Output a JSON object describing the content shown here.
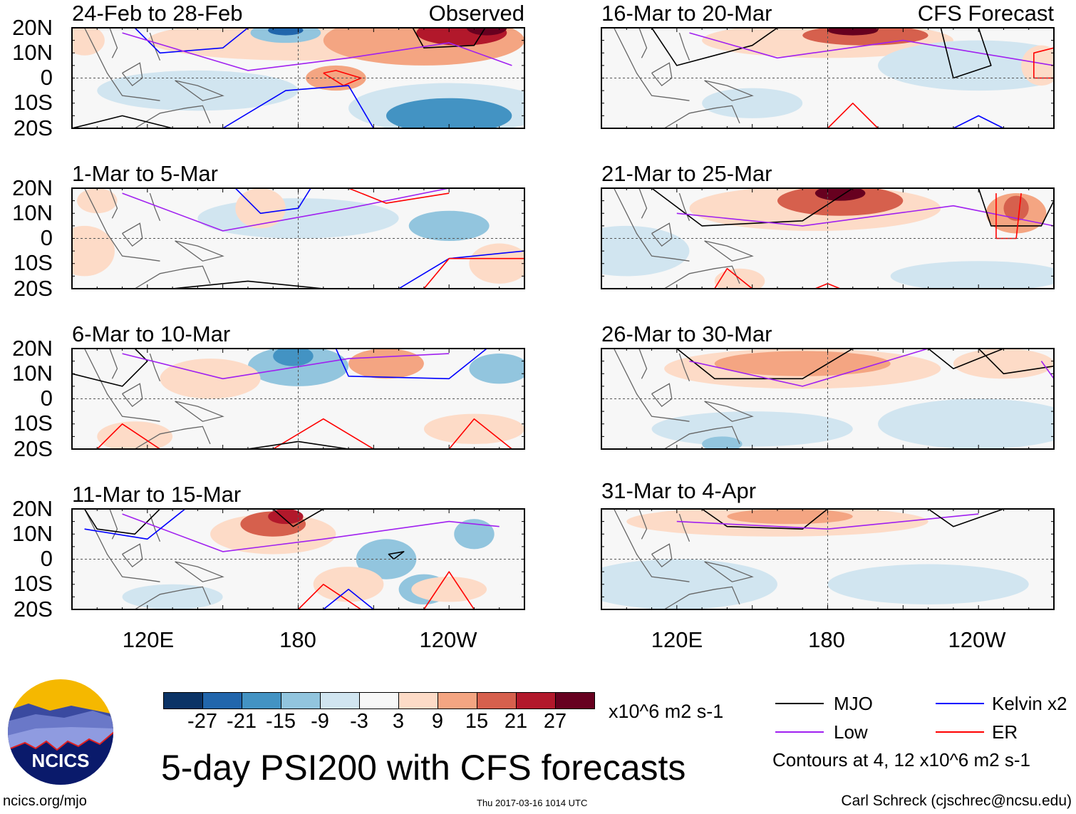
{
  "panels": {
    "left": [
      {
        "title": "24-Feb to 28-Feb",
        "tag": "Observed"
      },
      {
        "title": "1-Mar to 5-Mar"
      },
      {
        "title": "6-Mar to 10-Mar"
      },
      {
        "title": "11-Mar to 15-Mar"
      }
    ],
    "right": [
      {
        "title": "16-Mar to 20-Mar",
        "tag": "CFS Forecast"
      },
      {
        "title": "21-Mar to 25-Mar"
      },
      {
        "title": "26-Mar to 30-Mar"
      },
      {
        "title": "31-Mar to 4-Apr"
      }
    ]
  },
  "lat_labels": [
    "20N",
    "10N",
    "0",
    "10S",
    "20S"
  ],
  "lon_labels": [
    "120E",
    "180",
    "120W"
  ],
  "colorbar": {
    "ticks": [
      "-27",
      "-21",
      "-15",
      "-9",
      "-3",
      "3",
      "9",
      "15",
      "21",
      "27"
    ],
    "colors": [
      "#0b3366",
      "#2166ac",
      "#4393c3",
      "#92c5de",
      "#d1e5f0",
      "#f7f7f7",
      "#fddbc7",
      "#f4a582",
      "#d6604d",
      "#b2182b",
      "#67001f"
    ],
    "units": "x10^6 m2 s-1"
  },
  "legend": {
    "items": [
      {
        "label": "MJO",
        "color": "#000000"
      },
      {
        "label": "Kelvin x2",
        "color": "#0000ff"
      },
      {
        "label": "Low",
        "color": "#a020f0"
      },
      {
        "label": "ER",
        "color": "#ff0000"
      }
    ],
    "note": "Contours at 4, 12 x10^6 m2 s-1"
  },
  "title": "5-day PSI200 with CFS forecasts",
  "logo": {
    "text": "NCICS"
  },
  "footer": {
    "url": "ncics.org/mjo",
    "timestamp": "Thu 2017-03-16 1014 UTC",
    "author": "Carl Schreck (cjschrec@ncsu.edu)"
  }
}
